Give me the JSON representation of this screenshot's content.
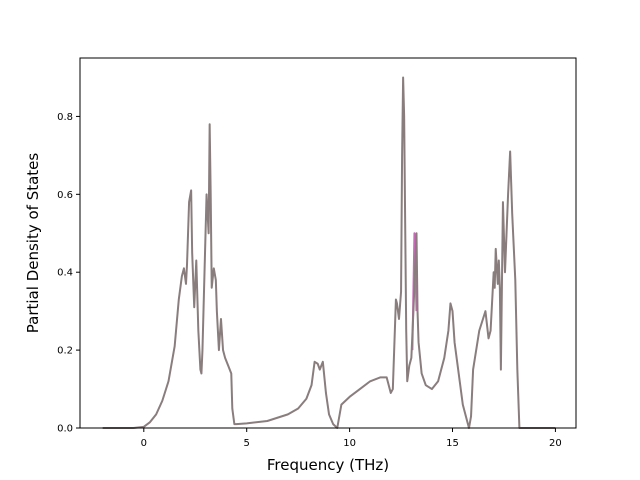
{
  "chart_data": {
    "type": "line",
    "title": "",
    "xlabel": "Frequency (THz)",
    "ylabel": "Partial Density of States",
    "xlim": [
      -3.1,
      21.0
    ],
    "ylim": [
      0.0,
      0.95
    ],
    "xticks": [
      0,
      5,
      10,
      15,
      20
    ],
    "yticks": [
      0.0,
      0.2,
      0.4,
      0.6,
      0.8
    ],
    "xtick_labels": [
      "0",
      "5",
      "10",
      "15",
      "20"
    ],
    "ytick_labels": [
      "0.0",
      "0.2",
      "0.4",
      "0.6",
      "0.8"
    ],
    "grid": false,
    "legend": "none",
    "series": [
      {
        "color": "#8a7d7d",
        "x": [
          -2.0,
          -0.5,
          0.0,
          0.3,
          0.6,
          0.9,
          1.2,
          1.5,
          1.7,
          1.85,
          1.95,
          2.05,
          2.1,
          2.2,
          2.3,
          2.35,
          2.45,
          2.55,
          2.65,
          2.75,
          2.8,
          2.85,
          2.95,
          3.05,
          3.15,
          3.2,
          3.25,
          3.3,
          3.4,
          3.5,
          3.55,
          3.65,
          3.75,
          3.85,
          3.95,
          4.1,
          4.25,
          4.3,
          4.4,
          4.5,
          5.0,
          6.0,
          7.0,
          7.5,
          7.9,
          8.15,
          8.3,
          8.45,
          8.55,
          8.7,
          8.85,
          9.0,
          9.2,
          9.4,
          9.6,
          10.0,
          10.5,
          11.0,
          11.5,
          11.8,
          12.0,
          12.1,
          12.25,
          12.3,
          12.4,
          12.5,
          12.55,
          12.6,
          12.65,
          12.75,
          12.8,
          12.9,
          13.0,
          13.1,
          13.25,
          13.3,
          13.35,
          13.5,
          13.7,
          14.0,
          14.3,
          14.6,
          14.8,
          14.9,
          15.0,
          15.1,
          15.3,
          15.5,
          15.7,
          15.8,
          15.9,
          16.0,
          16.3,
          16.6,
          16.75,
          16.85,
          17.0,
          17.05,
          17.1,
          17.2,
          17.25,
          17.3,
          17.35,
          17.45,
          17.55,
          17.7,
          17.8,
          17.9,
          18.05,
          18.15,
          18.25,
          18.4,
          19.0,
          20.0
        ],
        "y": [
          0.0,
          0.0,
          0.003,
          0.015,
          0.035,
          0.07,
          0.12,
          0.21,
          0.33,
          0.39,
          0.41,
          0.37,
          0.42,
          0.58,
          0.61,
          0.45,
          0.31,
          0.43,
          0.25,
          0.15,
          0.14,
          0.2,
          0.4,
          0.6,
          0.5,
          0.78,
          0.6,
          0.36,
          0.41,
          0.38,
          0.3,
          0.2,
          0.28,
          0.2,
          0.18,
          0.16,
          0.14,
          0.05,
          0.01,
          0.01,
          0.012,
          0.018,
          0.035,
          0.05,
          0.075,
          0.11,
          0.17,
          0.165,
          0.15,
          0.17,
          0.09,
          0.035,
          0.01,
          0.0,
          0.06,
          0.08,
          0.1,
          0.12,
          0.13,
          0.13,
          0.09,
          0.1,
          0.33,
          0.32,
          0.28,
          0.35,
          0.7,
          0.9,
          0.8,
          0.25,
          0.12,
          0.16,
          0.18,
          0.3,
          0.5,
          0.3,
          0.22,
          0.14,
          0.11,
          0.1,
          0.12,
          0.18,
          0.25,
          0.32,
          0.3,
          0.22,
          0.14,
          0.06,
          0.02,
          0.0,
          0.03,
          0.15,
          0.25,
          0.3,
          0.23,
          0.25,
          0.4,
          0.36,
          0.46,
          0.37,
          0.43,
          0.36,
          0.15,
          0.58,
          0.4,
          0.6,
          0.71,
          0.55,
          0.38,
          0.15,
          0.0,
          0.0,
          0.0,
          0.0
        ]
      }
    ],
    "highlight": {
      "color": "#c96ab8",
      "x": [
        13.05,
        13.15,
        13.25
      ],
      "y": [
        0.2,
        0.5,
        0.3
      ]
    }
  }
}
